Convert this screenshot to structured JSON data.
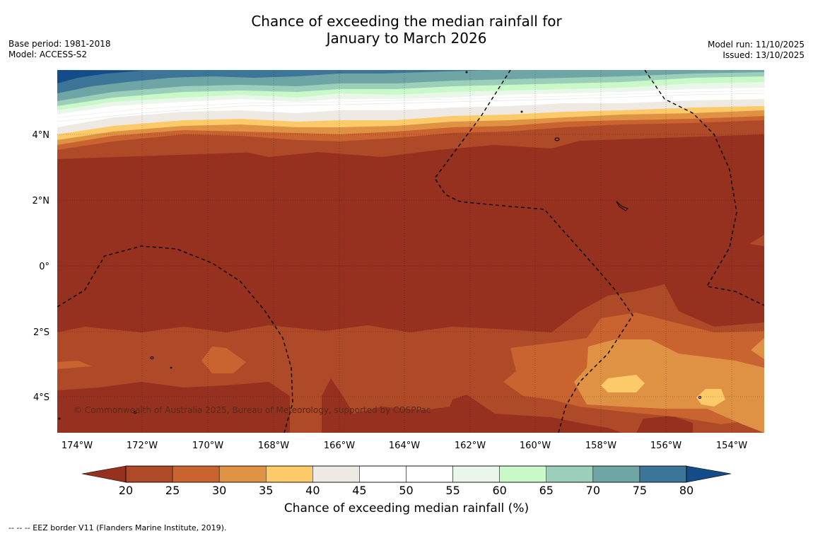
{
  "header": {
    "title_line1": "Chance of exceeding the median rainfall for",
    "title_line2": "January to March 2026",
    "base_period": "Base period: 1981-2018",
    "model": "Model: ACCESS-S2",
    "model_run": "Model run: 11/10/2025",
    "issued": "Issued: 13/10/2025"
  },
  "map": {
    "lon_labels": [
      "174°W",
      "172°W",
      "170°W",
      "168°W",
      "166°W",
      "164°W",
      "162°W",
      "160°W",
      "158°W",
      "156°W",
      "154°W"
    ],
    "lat_labels": [
      "4°N",
      "2°N",
      "0°",
      "2°S",
      "4°S"
    ],
    "copyright": "© Commonwealth of Australia 2025, Bureau of Meteorology, supported by COSPPac"
  },
  "colorbar": {
    "ticks": [
      "20",
      "25",
      "30",
      "35",
      "40",
      "45",
      "50",
      "55",
      "60",
      "65",
      "70",
      "75",
      "80"
    ],
    "colors": [
      "#af4a28",
      "#c9632f",
      "#e09244",
      "#fcca69",
      "#efe9e3",
      "#ffffff",
      "#ffffff",
      "#ebf6ea",
      "#c9f8c9",
      "#9bcfba",
      "#6fa5a5",
      "#3c7598"
    ],
    "below_color": "#963120",
    "above_color": "#134c89",
    "label": "Chance of exceeding median rainfall (%)"
  },
  "legend": {
    "eez": "--  --  -- EEZ border V11 (Flanders Marine Institute, 2019)."
  }
}
